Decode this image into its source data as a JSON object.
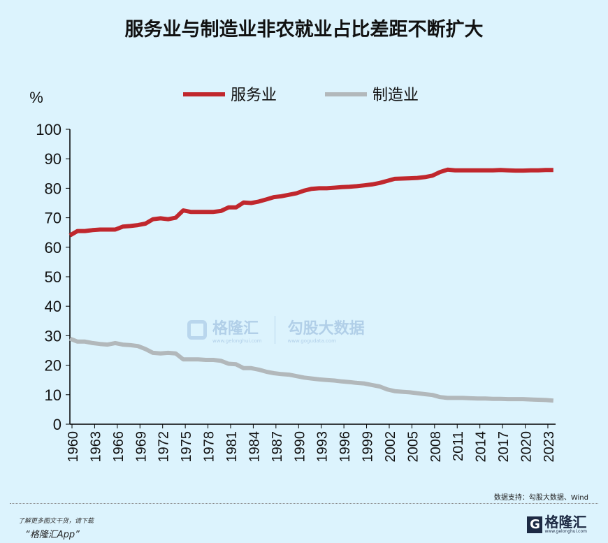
{
  "title": "服务业与制造业非农就业占比差距不断扩大",
  "source": "数据支持：勾股大数据、Wind",
  "footer": {
    "line1": "了解更多图文干货，请下载",
    "line2": "“格隆汇App”"
  },
  "logo": {
    "text": "格隆汇",
    "url": "www.gelonghui.com"
  },
  "watermark": {
    "left": "格隆汇",
    "left_url": "www.gelonghui.com",
    "right": "勾股大数据",
    "right_url": "www.gogudata.com"
  },
  "colors": {
    "services": "#c0272d",
    "manufacturing": "#b2b8bb",
    "background": "#dcf3fd"
  },
  "chart_data": {
    "type": "line",
    "title": "服务业与制造业非农就业占比差距不断扩大",
    "ylabel": "%",
    "ylim": [
      0,
      100
    ],
    "yticks": [
      0,
      10,
      20,
      30,
      40,
      50,
      60,
      70,
      80,
      90,
      100
    ],
    "xlim": [
      1960,
      2024.3
    ],
    "xticks": [
      1960,
      1963,
      1966,
      1969,
      1972,
      1975,
      1978,
      1981,
      1984,
      1987,
      1990,
      1993,
      1996,
      1999,
      2002,
      2005,
      2008,
      2011,
      2014,
      2017,
      2020,
      2023
    ],
    "grid": false,
    "legend": "top-center",
    "x": [
      1960,
      1961,
      1962,
      1963,
      1964,
      1965,
      1966,
      1967,
      1968,
      1969,
      1970,
      1971,
      1972,
      1973,
      1974,
      1975,
      1976,
      1977,
      1978,
      1979,
      1980,
      1981,
      1982,
      1983,
      1984,
      1985,
      1986,
      1987,
      1988,
      1989,
      1990,
      1991,
      1992,
      1993,
      1994,
      1995,
      1996,
      1997,
      1998,
      1999,
      2000,
      2001,
      2002,
      2003,
      2004,
      2005,
      2006,
      2007,
      2008,
      2009,
      2010,
      2011,
      2012,
      2013,
      2014,
      2015,
      2016,
      2017,
      2018,
      2019,
      2020,
      2021,
      2022,
      2023,
      2024
    ],
    "series": [
      {
        "name": "服务业",
        "values": [
          64,
          65.5,
          65.5,
          65.8,
          66,
          66,
          66,
          67,
          67.2,
          67.5,
          68,
          69.5,
          69.8,
          69.5,
          70,
          72.5,
          72,
          72,
          72,
          72,
          72.3,
          73.5,
          73.5,
          75.2,
          75,
          75.5,
          76.2,
          77,
          77.3,
          77.8,
          78.3,
          79.2,
          79.8,
          80,
          80,
          80.2,
          80.4,
          80.5,
          80.7,
          81,
          81.3,
          81.8,
          82.5,
          83.2,
          83.3,
          83.4,
          83.5,
          83.8,
          84.3,
          85.5,
          86.3,
          86.1,
          86.1,
          86.1,
          86.1,
          86.1,
          86.1,
          86.2,
          86.1,
          86,
          86,
          86.1,
          86.1,
          86.2,
          86.2
        ]
      },
      {
        "name": "制造业",
        "values": [
          29,
          28,
          28,
          27.5,
          27.2,
          27,
          27.5,
          27,
          26.8,
          26.5,
          25.5,
          24.2,
          24,
          24.2,
          24,
          22,
          22,
          22,
          21.8,
          21.8,
          21.5,
          20.5,
          20.3,
          19,
          19,
          18.5,
          17.8,
          17.3,
          17,
          16.8,
          16.3,
          15.8,
          15.5,
          15.2,
          15,
          14.8,
          14.5,
          14.3,
          14,
          13.8,
          13.3,
          12.8,
          11.8,
          11.2,
          11,
          10.8,
          10.5,
          10.2,
          9.9,
          9.2,
          8.9,
          8.9,
          8.9,
          8.8,
          8.7,
          8.7,
          8.6,
          8.6,
          8.5,
          8.5,
          8.5,
          8.4,
          8.3,
          8.2,
          8.0
        ]
      }
    ]
  }
}
